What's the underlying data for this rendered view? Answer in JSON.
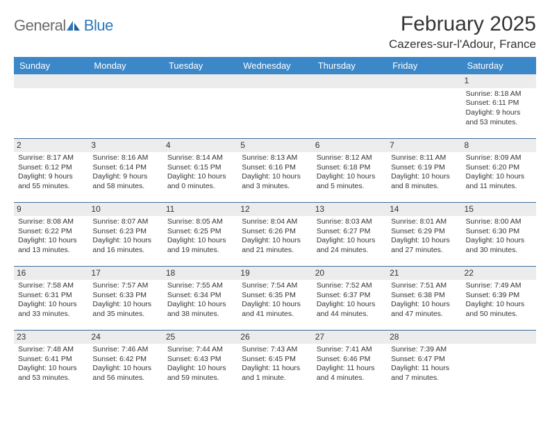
{
  "brand": {
    "name1": "General",
    "name2": "Blue"
  },
  "title": "February 2025",
  "location": "Cazeres-sur-l'Adour, France",
  "colors": {
    "header_bg": "#3b87c8",
    "header_fg": "#ffffff",
    "daynum_bg": "#ececec",
    "rule": "#3b6a9a",
    "brand_gray": "#6a6a6a",
    "brand_blue": "#2a77bd",
    "text": "#333333",
    "page_bg": "#ffffff"
  },
  "columns": [
    "Sunday",
    "Monday",
    "Tuesday",
    "Wednesday",
    "Thursday",
    "Friday",
    "Saturday"
  ],
  "weeks": [
    [
      {
        "n": "",
        "sunrise": "",
        "sunset": "",
        "daylight": ""
      },
      {
        "n": "",
        "sunrise": "",
        "sunset": "",
        "daylight": ""
      },
      {
        "n": "",
        "sunrise": "",
        "sunset": "",
        "daylight": ""
      },
      {
        "n": "",
        "sunrise": "",
        "sunset": "",
        "daylight": ""
      },
      {
        "n": "",
        "sunrise": "",
        "sunset": "",
        "daylight": ""
      },
      {
        "n": "",
        "sunrise": "",
        "sunset": "",
        "daylight": ""
      },
      {
        "n": "1",
        "sunrise": "Sunrise: 8:18 AM",
        "sunset": "Sunset: 6:11 PM",
        "daylight": "Daylight: 9 hours and 53 minutes."
      }
    ],
    [
      {
        "n": "2",
        "sunrise": "Sunrise: 8:17 AM",
        "sunset": "Sunset: 6:12 PM",
        "daylight": "Daylight: 9 hours and 55 minutes."
      },
      {
        "n": "3",
        "sunrise": "Sunrise: 8:16 AM",
        "sunset": "Sunset: 6:14 PM",
        "daylight": "Daylight: 9 hours and 58 minutes."
      },
      {
        "n": "4",
        "sunrise": "Sunrise: 8:14 AM",
        "sunset": "Sunset: 6:15 PM",
        "daylight": "Daylight: 10 hours and 0 minutes."
      },
      {
        "n": "5",
        "sunrise": "Sunrise: 8:13 AM",
        "sunset": "Sunset: 6:16 PM",
        "daylight": "Daylight: 10 hours and 3 minutes."
      },
      {
        "n": "6",
        "sunrise": "Sunrise: 8:12 AM",
        "sunset": "Sunset: 6:18 PM",
        "daylight": "Daylight: 10 hours and 5 minutes."
      },
      {
        "n": "7",
        "sunrise": "Sunrise: 8:11 AM",
        "sunset": "Sunset: 6:19 PM",
        "daylight": "Daylight: 10 hours and 8 minutes."
      },
      {
        "n": "8",
        "sunrise": "Sunrise: 8:09 AM",
        "sunset": "Sunset: 6:20 PM",
        "daylight": "Daylight: 10 hours and 11 minutes."
      }
    ],
    [
      {
        "n": "9",
        "sunrise": "Sunrise: 8:08 AM",
        "sunset": "Sunset: 6:22 PM",
        "daylight": "Daylight: 10 hours and 13 minutes."
      },
      {
        "n": "10",
        "sunrise": "Sunrise: 8:07 AM",
        "sunset": "Sunset: 6:23 PM",
        "daylight": "Daylight: 10 hours and 16 minutes."
      },
      {
        "n": "11",
        "sunrise": "Sunrise: 8:05 AM",
        "sunset": "Sunset: 6:25 PM",
        "daylight": "Daylight: 10 hours and 19 minutes."
      },
      {
        "n": "12",
        "sunrise": "Sunrise: 8:04 AM",
        "sunset": "Sunset: 6:26 PM",
        "daylight": "Daylight: 10 hours and 21 minutes."
      },
      {
        "n": "13",
        "sunrise": "Sunrise: 8:03 AM",
        "sunset": "Sunset: 6:27 PM",
        "daylight": "Daylight: 10 hours and 24 minutes."
      },
      {
        "n": "14",
        "sunrise": "Sunrise: 8:01 AM",
        "sunset": "Sunset: 6:29 PM",
        "daylight": "Daylight: 10 hours and 27 minutes."
      },
      {
        "n": "15",
        "sunrise": "Sunrise: 8:00 AM",
        "sunset": "Sunset: 6:30 PM",
        "daylight": "Daylight: 10 hours and 30 minutes."
      }
    ],
    [
      {
        "n": "16",
        "sunrise": "Sunrise: 7:58 AM",
        "sunset": "Sunset: 6:31 PM",
        "daylight": "Daylight: 10 hours and 33 minutes."
      },
      {
        "n": "17",
        "sunrise": "Sunrise: 7:57 AM",
        "sunset": "Sunset: 6:33 PM",
        "daylight": "Daylight: 10 hours and 35 minutes."
      },
      {
        "n": "18",
        "sunrise": "Sunrise: 7:55 AM",
        "sunset": "Sunset: 6:34 PM",
        "daylight": "Daylight: 10 hours and 38 minutes."
      },
      {
        "n": "19",
        "sunrise": "Sunrise: 7:54 AM",
        "sunset": "Sunset: 6:35 PM",
        "daylight": "Daylight: 10 hours and 41 minutes."
      },
      {
        "n": "20",
        "sunrise": "Sunrise: 7:52 AM",
        "sunset": "Sunset: 6:37 PM",
        "daylight": "Daylight: 10 hours and 44 minutes."
      },
      {
        "n": "21",
        "sunrise": "Sunrise: 7:51 AM",
        "sunset": "Sunset: 6:38 PM",
        "daylight": "Daylight: 10 hours and 47 minutes."
      },
      {
        "n": "22",
        "sunrise": "Sunrise: 7:49 AM",
        "sunset": "Sunset: 6:39 PM",
        "daylight": "Daylight: 10 hours and 50 minutes."
      }
    ],
    [
      {
        "n": "23",
        "sunrise": "Sunrise: 7:48 AM",
        "sunset": "Sunset: 6:41 PM",
        "daylight": "Daylight: 10 hours and 53 minutes."
      },
      {
        "n": "24",
        "sunrise": "Sunrise: 7:46 AM",
        "sunset": "Sunset: 6:42 PM",
        "daylight": "Daylight: 10 hours and 56 minutes."
      },
      {
        "n": "25",
        "sunrise": "Sunrise: 7:44 AM",
        "sunset": "Sunset: 6:43 PM",
        "daylight": "Daylight: 10 hours and 59 minutes."
      },
      {
        "n": "26",
        "sunrise": "Sunrise: 7:43 AM",
        "sunset": "Sunset: 6:45 PM",
        "daylight": "Daylight: 11 hours and 1 minute."
      },
      {
        "n": "27",
        "sunrise": "Sunrise: 7:41 AM",
        "sunset": "Sunset: 6:46 PM",
        "daylight": "Daylight: 11 hours and 4 minutes."
      },
      {
        "n": "28",
        "sunrise": "Sunrise: 7:39 AM",
        "sunset": "Sunset: 6:47 PM",
        "daylight": "Daylight: 11 hours and 7 minutes."
      },
      {
        "n": "",
        "sunrise": "",
        "sunset": "",
        "daylight": ""
      }
    ]
  ]
}
